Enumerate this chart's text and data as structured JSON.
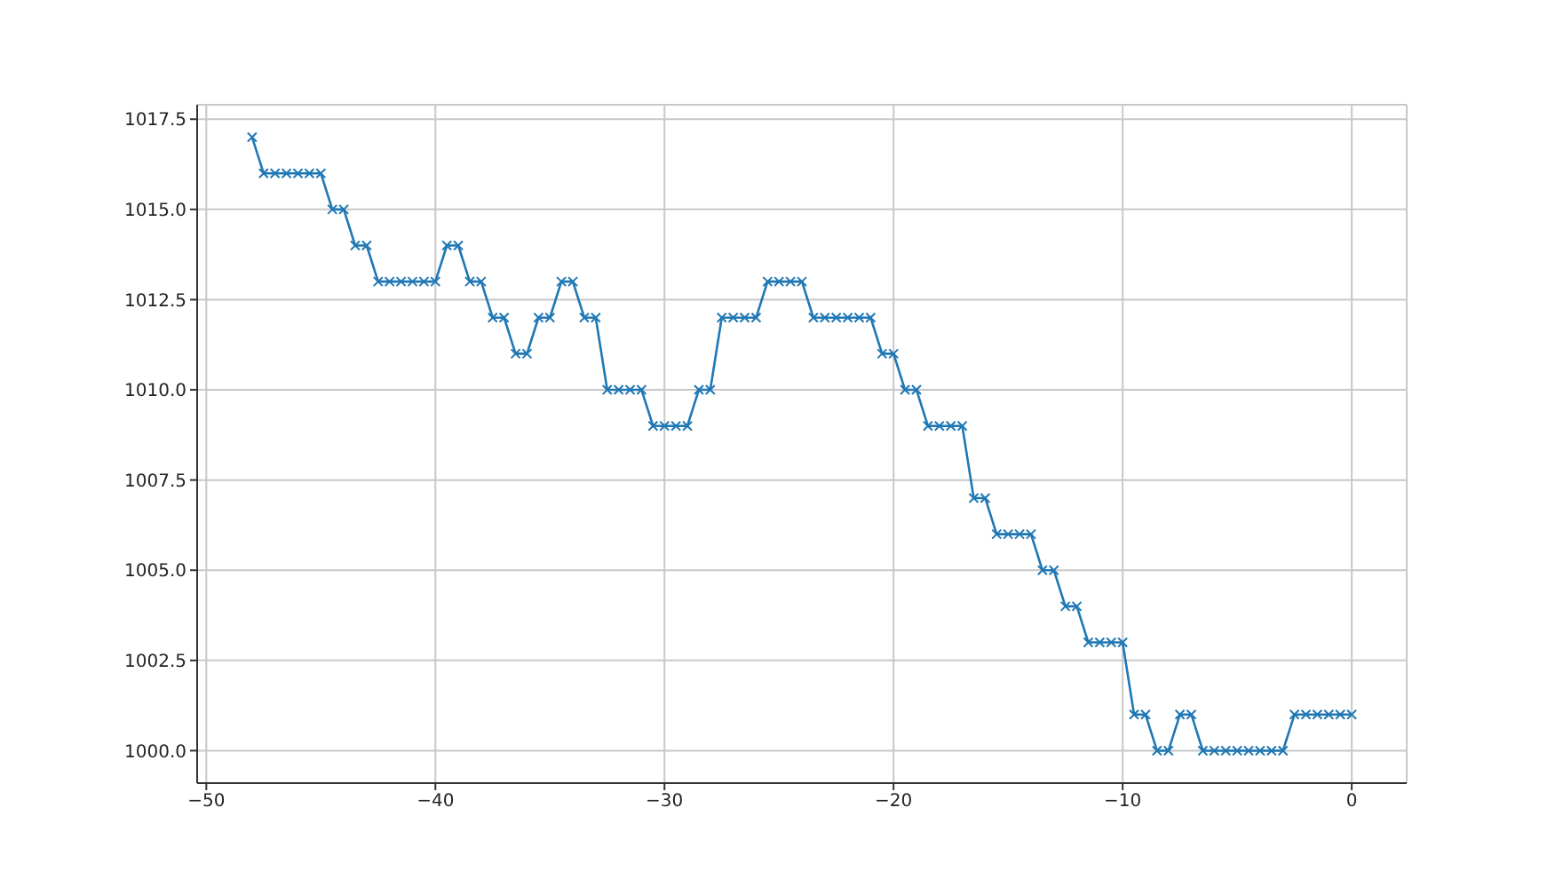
{
  "chart_data": {
    "type": "line",
    "marker": "cross",
    "grid": true,
    "x": [
      -48,
      -47.5,
      -47,
      -46.5,
      -46,
      -45.5,
      -45,
      -44.5,
      -44,
      -43.5,
      -43,
      -42.5,
      -42,
      -41.5,
      -41,
      -40.5,
      -40,
      -39.5,
      -39,
      -38.5,
      -38,
      -37.5,
      -37,
      -36.5,
      -36,
      -35.5,
      -35,
      -34.5,
      -34,
      -33.5,
      -33,
      -32.5,
      -32,
      -31.5,
      -31,
      -30.5,
      -30,
      -29.5,
      -29,
      -28.5,
      -28,
      -27.5,
      -27,
      -26.5,
      -26,
      -25.5,
      -25,
      -24.5,
      -24,
      -23.5,
      -23,
      -22.5,
      -22,
      -21.5,
      -21,
      -20.5,
      -20,
      -19.5,
      -19,
      -18.5,
      -18,
      -17.5,
      -17,
      -16.5,
      -16,
      -15.5,
      -15,
      -14.5,
      -14,
      -13.5,
      -13,
      -12.5,
      -12,
      -11.5,
      -11,
      -10.5,
      -10,
      -9.5,
      -9,
      -8.5,
      -8,
      -7.5,
      -7,
      -6.5,
      -6,
      -5.5,
      -5,
      -4.5,
      -4,
      -3.5,
      -3,
      -2.5,
      -2,
      -1.5,
      -1,
      -0.5,
      0
    ],
    "series": [
      {
        "color": "#1f77b4",
        "values": [
          1017,
          1016,
          1016,
          1016,
          1016,
          1016,
          1016,
          1015,
          1015,
          1014,
          1014,
          1013,
          1013,
          1013,
          1013,
          1013,
          1013,
          1014,
          1014,
          1013,
          1013,
          1012,
          1012,
          1011,
          1011,
          1012,
          1012,
          1013,
          1013,
          1012,
          1012,
          1010,
          1010,
          1010,
          1010,
          1009,
          1009,
          1009,
          1009,
          1010,
          1010,
          1012,
          1012,
          1012,
          1012,
          1013,
          1013,
          1013,
          1013,
          1012,
          1012,
          1012,
          1012,
          1012,
          1012,
          1011,
          1011,
          1010,
          1010,
          1009,
          1009,
          1009,
          1009,
          1007,
          1007,
          1006,
          1006,
          1006,
          1006,
          1005,
          1005,
          1004,
          1004,
          1003,
          1003,
          1003,
          1003,
          1001,
          1001,
          1000,
          1000,
          1001,
          1001,
          1000,
          1000,
          1000,
          1000,
          1000,
          1000,
          1000,
          1000,
          1001,
          1001,
          1001,
          1001,
          1001,
          1001
        ]
      }
    ],
    "xlim": [
      -50.4,
      2.4
    ],
    "xticks": [
      {
        "value": -50,
        "label": "−50"
      },
      {
        "value": -40,
        "label": "−40"
      },
      {
        "value": -30,
        "label": "−30"
      },
      {
        "value": -20,
        "label": "−20"
      },
      {
        "value": -10,
        "label": "−10"
      },
      0
    ],
    "ylim": [
      999.1,
      1017.9
    ],
    "yticks": [
      {
        "value": 1000,
        "label": "1000.0"
      },
      {
        "value": 1002.5,
        "label": "1002.5"
      },
      {
        "value": 1005,
        "label": "1005.0"
      },
      {
        "value": 1007.5,
        "label": "1007.5"
      },
      {
        "value": 1010,
        "label": "1010.0"
      },
      {
        "value": 1012.5,
        "label": "1012.5"
      },
      {
        "value": 1015,
        "label": "1015.0"
      },
      {
        "value": 1017.5,
        "label": "1017.5"
      }
    ]
  }
}
